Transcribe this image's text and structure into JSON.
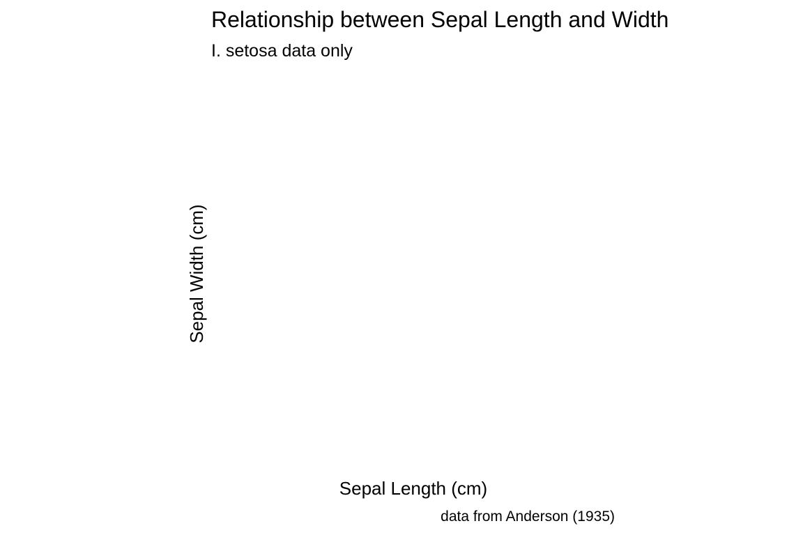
{
  "chart_data": {
    "type": "scatter",
    "title": "Relationship between Sepal Length and Width",
    "subtitle": "I. setosa data only",
    "xlabel": "Sepal Length (cm)",
    "ylabel": "Sepal Width (cm)",
    "caption": "data from Anderson (1935)",
    "grid": false,
    "legend": "none",
    "series": []
  }
}
